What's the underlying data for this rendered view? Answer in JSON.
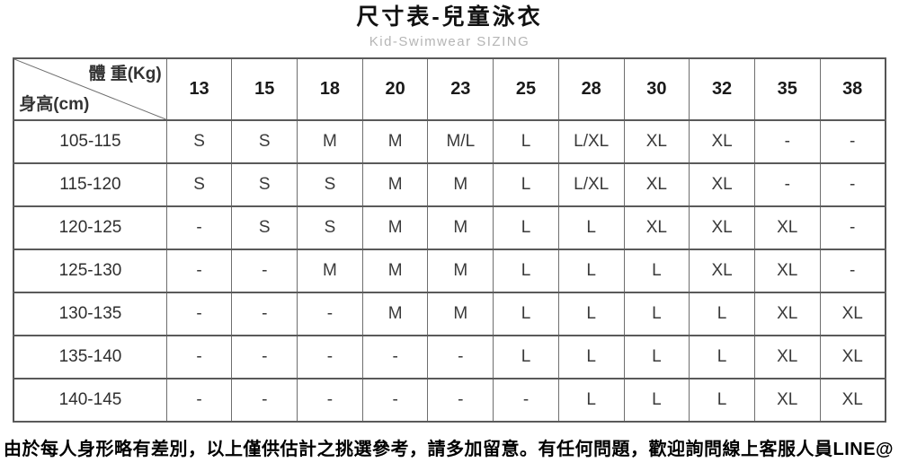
{
  "page": {
    "title": "尺寸表-兒童泳衣",
    "subtitle": "Kid-Swimwear  SIZING",
    "footer_note": "由於每人身形略有差別，以上僅供估計之挑選參考，請多加留意。有任何問題，歡迎詢問線上客服人員LINE@"
  },
  "table": {
    "corner": {
      "top_right_label": "體 重(Kg)",
      "bottom_left_label": "身高(cm)"
    },
    "weight_headers": [
      "13",
      "15",
      "18",
      "20",
      "23",
      "25",
      "28",
      "30",
      "32",
      "35",
      "38"
    ],
    "rows": [
      {
        "height": "105-115",
        "sizes": [
          "S",
          "S",
          "M",
          "M",
          "M/L",
          "L",
          "L/XL",
          "XL",
          "XL",
          "-",
          "-"
        ]
      },
      {
        "height": "115-120",
        "sizes": [
          "S",
          "S",
          "S",
          "M",
          "M",
          "L",
          "L/XL",
          "XL",
          "XL",
          "-",
          "-"
        ]
      },
      {
        "height": "120-125",
        "sizes": [
          "-",
          "S",
          "S",
          "M",
          "M",
          "L",
          "L",
          "XL",
          "XL",
          "XL",
          "-"
        ]
      },
      {
        "height": "125-130",
        "sizes": [
          "-",
          "-",
          "M",
          "M",
          "M",
          "L",
          "L",
          "L",
          "XL",
          "XL",
          "-"
        ]
      },
      {
        "height": "130-135",
        "sizes": [
          "-",
          "-",
          "-",
          "M",
          "M",
          "L",
          "L",
          "L",
          "L",
          "XL",
          "XL"
        ]
      },
      {
        "height": "135-140",
        "sizes": [
          "-",
          "-",
          "-",
          "-",
          "-",
          "L",
          "L",
          "L",
          "L",
          "XL",
          "XL"
        ]
      },
      {
        "height": "140-145",
        "sizes": [
          "-",
          "-",
          "-",
          "-",
          "-",
          "-",
          "L",
          "L",
          "L",
          "XL",
          "XL"
        ]
      }
    ]
  },
  "colors": {
    "title_text": "#111111",
    "subtitle_gray": "#b5b5b5",
    "border_dark": "#5a5a5a",
    "border_light": "#6e6e6e",
    "cell_text": "#3a3a3a"
  }
}
